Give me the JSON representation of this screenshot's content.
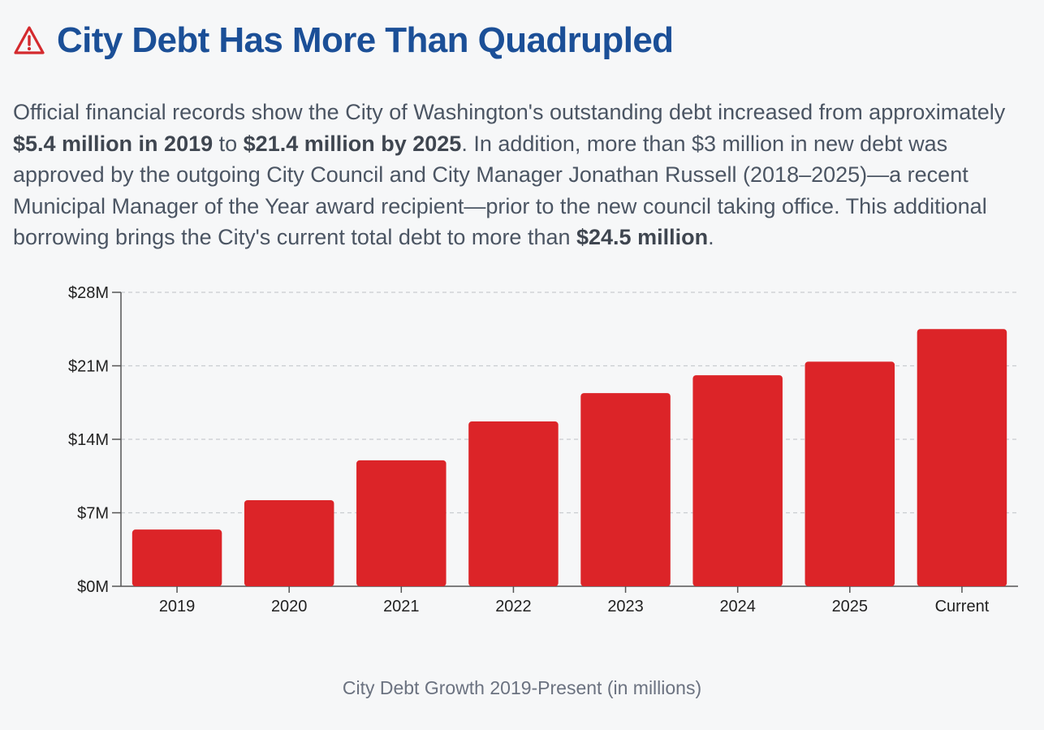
{
  "header": {
    "title": "City Debt Has More Than Quadrupled",
    "icon": "warning-triangle-icon",
    "icon_color": "#d42a2e"
  },
  "intro": {
    "p1": "Official financial records show the City of Washington's outstanding debt increased from approximately ",
    "b1": "$5.4 million in 2019",
    "p2": " to ",
    "b2": "$21.4 million by 2025",
    "p3": ". In addition, more than $3 million in new debt was approved by the outgoing City Council and City Manager Jonathan Russell (2018–2025)—a recent Municipal Manager of the Year award recipient—prior to the new council taking office. This additional borrowing brings the City's current total debt to more than ",
    "b3": "$24.5 million",
    "p4": "."
  },
  "chart_data": {
    "type": "bar",
    "title": "",
    "caption": "City Debt Growth 2019-Present (in millions)",
    "xlabel": "",
    "ylabel": "",
    "categories": [
      "2019",
      "2020",
      "2021",
      "2022",
      "2023",
      "2024",
      "2025",
      "Current"
    ],
    "values": [
      5.4,
      8.2,
      12.0,
      15.7,
      18.4,
      20.1,
      21.4,
      24.5
    ],
    "units": "millions USD",
    "ylim": [
      0,
      28
    ],
    "yticks": [
      0,
      7,
      14,
      21,
      28
    ],
    "ytick_labels": [
      "$0M",
      "$7M",
      "$14M",
      "$21M",
      "$28M"
    ],
    "grid": true,
    "bar_color": "#dc2428",
    "legend": "none"
  }
}
